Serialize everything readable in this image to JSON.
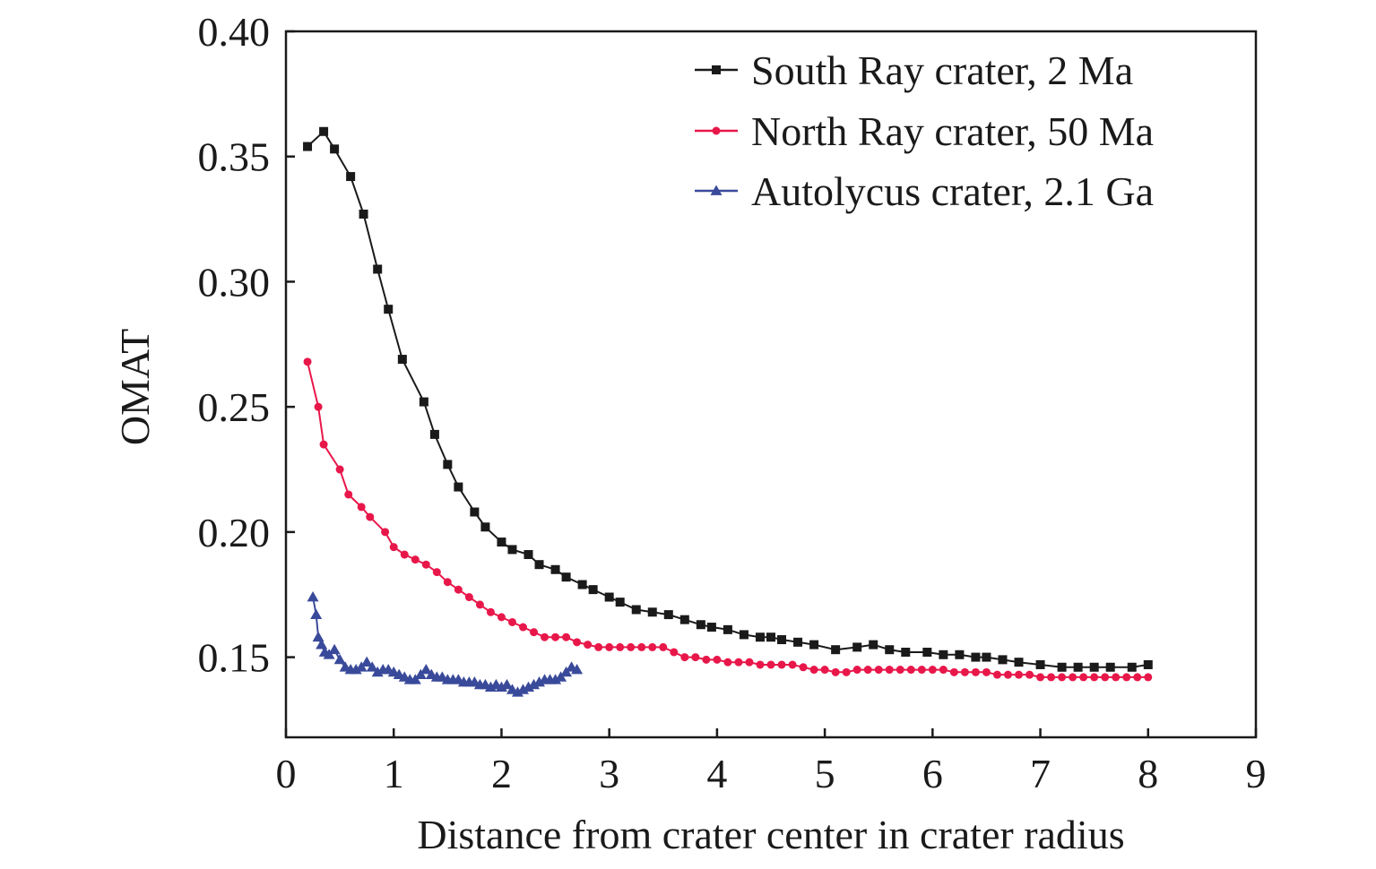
{
  "chart_data": {
    "type": "line",
    "xlabel": "Distance from crater center in crater radius",
    "ylabel": "OMAT",
    "xlim": [
      0,
      9
    ],
    "ylim": [
      0.118,
      0.4
    ],
    "xticks": [
      0,
      1,
      2,
      3,
      4,
      5,
      6,
      7,
      8,
      9
    ],
    "xtick_labels": [
      "0",
      "1",
      "2",
      "3",
      "4",
      "5",
      "6",
      "7",
      "8",
      "9"
    ],
    "yticks": [
      0.15,
      0.2,
      0.25,
      0.3,
      0.35,
      0.4
    ],
    "ytick_labels": [
      "0.15",
      "0.20",
      "0.25",
      "0.30",
      "0.35",
      "0.40"
    ],
    "grid": false,
    "legend_position": "top-right",
    "series": [
      {
        "name": "South Ray crater, 2 Ma",
        "color": "#1a1a1a",
        "marker": "square",
        "x": [
          0.2,
          0.35,
          0.45,
          0.6,
          0.72,
          0.85,
          0.95,
          1.08,
          1.28,
          1.38,
          1.5,
          1.6,
          1.75,
          1.85,
          2.0,
          2.1,
          2.25,
          2.35,
          2.5,
          2.6,
          2.75,
          2.85,
          3.0,
          3.1,
          3.25,
          3.4,
          3.55,
          3.7,
          3.85,
          3.95,
          4.1,
          4.25,
          4.4,
          4.5,
          4.6,
          4.75,
          4.9,
          5.1,
          5.3,
          5.45,
          5.6,
          5.75,
          5.95,
          6.1,
          6.25,
          6.4,
          6.5,
          6.65,
          6.8,
          7.0,
          7.2,
          7.35,
          7.5,
          7.65,
          7.85,
          8.0
        ],
        "y": [
          0.354,
          0.36,
          0.353,
          0.342,
          0.327,
          0.305,
          0.289,
          0.269,
          0.252,
          0.239,
          0.227,
          0.218,
          0.208,
          0.202,
          0.196,
          0.193,
          0.191,
          0.187,
          0.185,
          0.182,
          0.179,
          0.177,
          0.174,
          0.172,
          0.169,
          0.168,
          0.167,
          0.165,
          0.163,
          0.162,
          0.161,
          0.159,
          0.158,
          0.158,
          0.157,
          0.156,
          0.155,
          0.153,
          0.154,
          0.155,
          0.153,
          0.152,
          0.152,
          0.151,
          0.151,
          0.15,
          0.15,
          0.149,
          0.148,
          0.147,
          0.146,
          0.146,
          0.146,
          0.146,
          0.146,
          0.147
        ]
      },
      {
        "name": "North Ray crater, 50 Ma",
        "color": "#e8174a",
        "marker": "circle",
        "x": [
          0.2,
          0.3,
          0.35,
          0.5,
          0.58,
          0.7,
          0.78,
          0.92,
          1.0,
          1.1,
          1.2,
          1.3,
          1.4,
          1.5,
          1.6,
          1.7,
          1.8,
          1.9,
          2.0,
          2.1,
          2.2,
          2.3,
          2.4,
          2.5,
          2.6,
          2.7,
          2.8,
          2.9,
          3.0,
          3.1,
          3.2,
          3.3,
          3.4,
          3.5,
          3.6,
          3.7,
          3.8,
          3.9,
          4.0,
          4.1,
          4.2,
          4.3,
          4.4,
          4.5,
          4.6,
          4.7,
          4.8,
          4.9,
          5.0,
          5.1,
          5.2,
          5.3,
          5.4,
          5.5,
          5.6,
          5.7,
          5.8,
          5.9,
          6.0,
          6.1,
          6.2,
          6.3,
          6.4,
          6.5,
          6.6,
          6.7,
          6.8,
          6.9,
          7.0,
          7.1,
          7.2,
          7.3,
          7.4,
          7.5,
          7.6,
          7.7,
          7.8,
          7.9,
          8.0
        ],
        "y": [
          0.268,
          0.25,
          0.235,
          0.225,
          0.215,
          0.21,
          0.206,
          0.2,
          0.194,
          0.191,
          0.189,
          0.187,
          0.184,
          0.18,
          0.177,
          0.174,
          0.171,
          0.168,
          0.166,
          0.164,
          0.162,
          0.16,
          0.158,
          0.158,
          0.158,
          0.156,
          0.155,
          0.154,
          0.154,
          0.154,
          0.154,
          0.154,
          0.154,
          0.154,
          0.152,
          0.15,
          0.15,
          0.149,
          0.149,
          0.148,
          0.148,
          0.148,
          0.147,
          0.147,
          0.147,
          0.147,
          0.146,
          0.145,
          0.145,
          0.144,
          0.144,
          0.145,
          0.145,
          0.145,
          0.145,
          0.145,
          0.145,
          0.145,
          0.145,
          0.145,
          0.144,
          0.144,
          0.144,
          0.144,
          0.143,
          0.143,
          0.143,
          0.143,
          0.142,
          0.142,
          0.142,
          0.142,
          0.142,
          0.142,
          0.142,
          0.142,
          0.142,
          0.142,
          0.142
        ]
      },
      {
        "name": "Autolycus crater, 2.1 Ga",
        "color": "#3a4a9a",
        "marker": "triangle",
        "x": [
          0.25,
          0.28,
          0.3,
          0.33,
          0.36,
          0.4,
          0.45,
          0.5,
          0.55,
          0.6,
          0.65,
          0.7,
          0.75,
          0.8,
          0.85,
          0.9,
          0.95,
          1.0,
          1.05,
          1.1,
          1.15,
          1.2,
          1.25,
          1.3,
          1.35,
          1.4,
          1.45,
          1.5,
          1.55,
          1.6,
          1.65,
          1.7,
          1.75,
          1.8,
          1.85,
          1.9,
          1.95,
          2.0,
          2.05,
          2.1,
          2.15,
          2.2,
          2.25,
          2.3,
          2.35,
          2.4,
          2.45,
          2.5,
          2.55,
          2.6,
          2.65,
          2.7
        ],
        "y": [
          0.174,
          0.167,
          0.158,
          0.155,
          0.152,
          0.151,
          0.153,
          0.149,
          0.146,
          0.145,
          0.145,
          0.146,
          0.148,
          0.146,
          0.144,
          0.145,
          0.145,
          0.144,
          0.143,
          0.142,
          0.141,
          0.141,
          0.143,
          0.145,
          0.143,
          0.142,
          0.142,
          0.141,
          0.141,
          0.141,
          0.14,
          0.14,
          0.14,
          0.139,
          0.139,
          0.138,
          0.139,
          0.138,
          0.139,
          0.137,
          0.136,
          0.137,
          0.138,
          0.139,
          0.14,
          0.141,
          0.141,
          0.141,
          0.142,
          0.144,
          0.146,
          0.145
        ]
      }
    ]
  }
}
